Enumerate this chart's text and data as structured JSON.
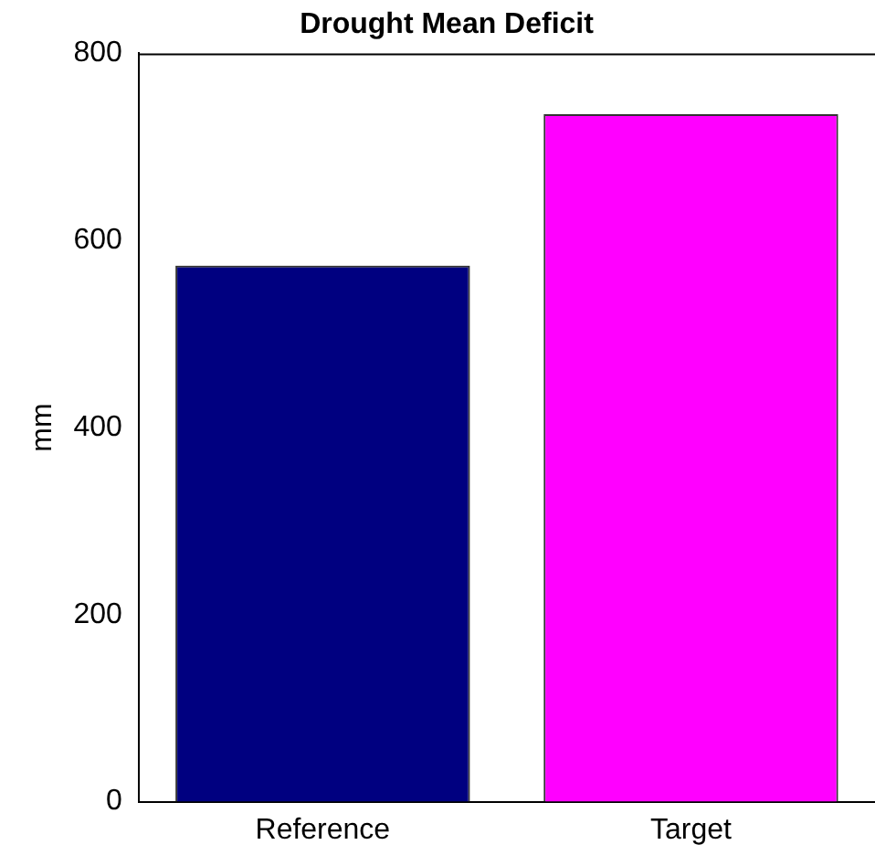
{
  "chart_data": {
    "type": "bar",
    "title": "Drought Mean Deficit",
    "ylabel": "mm",
    "categories": [
      "Reference",
      "Target"
    ],
    "values": [
      573,
      735
    ],
    "colors": [
      "#000080",
      "#ff00ff"
    ],
    "ylim": [
      0,
      800
    ],
    "yticks": [
      0,
      200,
      400,
      600,
      800
    ],
    "grid": false,
    "legend": false
  }
}
